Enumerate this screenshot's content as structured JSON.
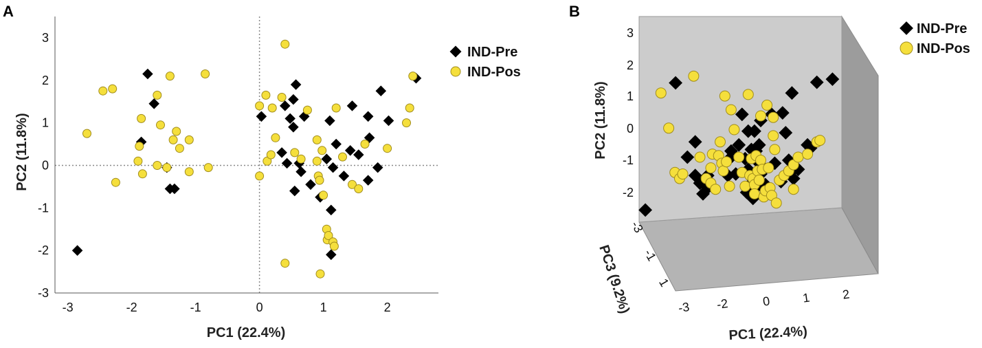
{
  "colors": {
    "pre": "#000000",
    "pos": "#F5DF3C",
    "pos_stroke": "#A08C1C",
    "back_wall": "#CCCCCC",
    "side_wall": "#9C9C9C",
    "floor": "#B4B4B4"
  },
  "panels": {
    "a": "A",
    "b": "B"
  },
  "legend": {
    "pre": "IND-Pre",
    "pos": "IND-Pos"
  },
  "chart_data": [
    {
      "type": "scatter",
      "panel": "A",
      "xlabel": "PC1 (22.4%)",
      "ylabel": "PC2 (11.8%)",
      "xlim": [
        -3.2,
        2.8
      ],
      "ylim": [
        -3,
        3.5
      ],
      "xticks": [
        "-3",
        "-2",
        "-1",
        "0",
        "1",
        "2"
      ],
      "yticks": [
        "-3",
        "-2",
        "-1",
        "0",
        "1",
        "2",
        "3"
      ],
      "reference_lines": {
        "x": 0,
        "y": 0,
        "style": "dotted"
      },
      "series": [
        {
          "name": "IND-Pre",
          "marker": "diamond",
          "points": [
            [
              -2.85,
              -2.0
            ],
            [
              -1.85,
              0.55
            ],
            [
              -1.75,
              2.15
            ],
            [
              -1.65,
              1.45
            ],
            [
              -1.45,
              -0.05
            ],
            [
              -1.4,
              -0.55
            ],
            [
              -1.33,
              -0.55
            ],
            [
              0.03,
              1.15
            ],
            [
              0.35,
              0.3
            ],
            [
              0.4,
              1.4
            ],
            [
              0.43,
              0.05
            ],
            [
              0.48,
              1.1
            ],
            [
              0.53,
              0.9
            ],
            [
              0.53,
              1.55
            ],
            [
              0.55,
              -0.6
            ],
            [
              0.57,
              1.9
            ],
            [
              0.62,
              0.05
            ],
            [
              0.65,
              -0.15
            ],
            [
              0.7,
              1.15
            ],
            [
              0.8,
              -0.45
            ],
            [
              0.95,
              -0.75
            ],
            [
              1.05,
              0.15
            ],
            [
              1.1,
              1.05
            ],
            [
              1.12,
              -1.05
            ],
            [
              1.12,
              -2.1
            ],
            [
              1.15,
              -0.05
            ],
            [
              1.2,
              0.5
            ],
            [
              1.32,
              -0.25
            ],
            [
              1.42,
              0.35
            ],
            [
              1.45,
              1.4
            ],
            [
              1.55,
              0.25
            ],
            [
              1.7,
              1.15
            ],
            [
              1.7,
              -0.35
            ],
            [
              1.72,
              0.65
            ],
            [
              1.85,
              -0.05
            ],
            [
              1.9,
              1.75
            ],
            [
              2.02,
              1.05
            ],
            [
              2.45,
              2.05
            ]
          ]
        },
        {
          "name": "IND-Pos",
          "marker": "circle",
          "points": [
            [
              -2.7,
              0.75
            ],
            [
              -2.45,
              1.75
            ],
            [
              -2.3,
              1.8
            ],
            [
              -2.25,
              -0.4
            ],
            [
              -1.9,
              0.1
            ],
            [
              -1.88,
              0.45
            ],
            [
              -1.85,
              1.1
            ],
            [
              -1.83,
              -0.2
            ],
            [
              -1.6,
              0.0
            ],
            [
              -1.6,
              1.65
            ],
            [
              -1.55,
              0.95
            ],
            [
              -1.45,
              -0.05
            ],
            [
              -1.4,
              2.1
            ],
            [
              -1.35,
              0.6
            ],
            [
              -1.3,
              0.8
            ],
            [
              -1.25,
              0.4
            ],
            [
              -1.1,
              0.6
            ],
            [
              -1.1,
              -0.15
            ],
            [
              -0.85,
              2.15
            ],
            [
              -0.8,
              -0.05
            ],
            [
              0.0,
              -0.25
            ],
            [
              0.0,
              1.4
            ],
            [
              0.1,
              1.65
            ],
            [
              0.12,
              0.1
            ],
            [
              0.18,
              0.25
            ],
            [
              0.2,
              1.35
            ],
            [
              0.25,
              0.65
            ],
            [
              0.35,
              1.6
            ],
            [
              0.4,
              2.85
            ],
            [
              0.4,
              -2.3
            ],
            [
              0.55,
              0.3
            ],
            [
              0.65,
              0.15
            ],
            [
              0.75,
              1.3
            ],
            [
              0.9,
              0.6
            ],
            [
              0.9,
              0.1
            ],
            [
              0.92,
              -0.25
            ],
            [
              0.94,
              -0.35
            ],
            [
              0.95,
              -2.55
            ],
            [
              0.98,
              0.35
            ],
            [
              1.0,
              -0.7
            ],
            [
              1.05,
              -1.5
            ],
            [
              1.06,
              -1.75
            ],
            [
              1.08,
              -1.65
            ],
            [
              1.15,
              -1.8
            ],
            [
              1.17,
              -1.9
            ],
            [
              1.2,
              1.35
            ],
            [
              1.3,
              0.2
            ],
            [
              1.45,
              -0.45
            ],
            [
              1.55,
              -0.55
            ],
            [
              1.65,
              0.5
            ],
            [
              2.0,
              0.4
            ],
            [
              2.3,
              1.0
            ],
            [
              2.35,
              1.35
            ],
            [
              2.4,
              2.1
            ]
          ]
        }
      ]
    },
    {
      "type": "scatter",
      "panel": "B",
      "projection": "3d",
      "xlabel": "PC1 (22.4%)",
      "ylabel": "PC2 (11.8%)",
      "zlabel": "PC3 (9.2%)",
      "xticks": [
        "-3",
        "-2",
        "0",
        "1",
        "2"
      ],
      "yticks": [
        "-2",
        "-1",
        "0",
        "1",
        "2",
        "3"
      ],
      "zticks": [
        "-3",
        "-1",
        "1"
      ],
      "xlim": [
        -3.5,
        3.0
      ],
      "ylim": [
        -3.0,
        3.5
      ],
      "series": [
        {
          "name": "IND-Pre",
          "marker": "diamond",
          "points": [
            [
              -3.3,
              -2.83
            ],
            [
              -2.33,
              1.33
            ],
            [
              -1.95,
              -1.1
            ],
            [
              -1.7,
              -0.6
            ],
            [
              -1.7,
              -1.7
            ],
            [
              -1.55,
              -1.95
            ],
            [
              -1.45,
              -2.3
            ],
            [
              -1.3,
              -2.1
            ],
            [
              -1.3,
              -1.7
            ],
            [
              -0.65,
              -1.7
            ],
            [
              -0.6,
              -1.15
            ],
            [
              -0.55,
              -0.9
            ],
            [
              -0.4,
              -1.65
            ],
            [
              -0.3,
              -0.7
            ],
            [
              -0.2,
              0.3
            ],
            [
              -0.1,
              -1.15
            ],
            [
              -0.05,
              -2.25
            ],
            [
              0.0,
              -0.25
            ],
            [
              0.0,
              -1.5
            ],
            [
              0.05,
              -2.0
            ],
            [
              0.1,
              -0.85
            ],
            [
              0.15,
              -2.45
            ],
            [
              0.2,
              -0.25
            ],
            [
              0.25,
              -2.1
            ],
            [
              0.25,
              -0.9
            ],
            [
              0.35,
              -0.7
            ],
            [
              0.35,
              -1.3
            ],
            [
              0.4,
              -1.65
            ],
            [
              0.4,
              0.1
            ],
            [
              0.55,
              -2.0
            ],
            [
              0.75,
              0.3
            ],
            [
              0.85,
              -1.3
            ],
            [
              1.05,
              -1.9
            ],
            [
              1.1,
              0.35
            ],
            [
              1.2,
              -0.3
            ],
            [
              1.3,
              -1.2
            ],
            [
              1.35,
              -1.6
            ],
            [
              1.45,
              -1.8
            ],
            [
              1.4,
              1.0
            ],
            [
              1.6,
              -1.5
            ],
            [
              1.9,
              -0.7
            ],
            [
              2.0,
              -0.8
            ],
            [
              2.2,
              1.35
            ],
            [
              2.7,
              1.45
            ]
          ]
        },
        {
          "name": "IND-Pos",
          "marker": "circle",
          "points": [
            [
              -2.8,
              1.0
            ],
            [
              -2.55,
              -0.15
            ],
            [
              -2.35,
              -1.6
            ],
            [
              -2.2,
              -1.8
            ],
            [
              -2.1,
              -1.65
            ],
            [
              -1.75,
              1.55
            ],
            [
              -1.55,
              -1.1
            ],
            [
              -1.35,
              -1.8
            ],
            [
              -1.2,
              -1.45
            ],
            [
              -1.2,
              -1.95
            ],
            [
              -1.15,
              -1.0
            ],
            [
              -1.05,
              -2.15
            ],
            [
              -0.95,
              -1.05
            ],
            [
              -0.9,
              -0.6
            ],
            [
              -0.85,
              -1.3
            ],
            [
              -0.8,
              -1.55
            ],
            [
              -0.75,
              0.9
            ],
            [
              -0.7,
              -1.25
            ],
            [
              -0.6,
              -2.05
            ],
            [
              -0.55,
              0.45
            ],
            [
              -0.45,
              -0.2
            ],
            [
              -0.3,
              -1.1
            ],
            [
              -0.2,
              -1.6
            ],
            [
              -0.1,
              -2.05
            ],
            [
              0.0,
              0.95
            ],
            [
              0.05,
              -1.7
            ],
            [
              0.1,
              -1.15
            ],
            [
              0.15,
              -1.8
            ],
            [
              0.2,
              -2.0
            ],
            [
              0.2,
              -2.3
            ],
            [
              0.25,
              -1.05
            ],
            [
              0.3,
              -1.55
            ],
            [
              0.35,
              -1.85
            ],
            [
              0.4,
              -1.2
            ],
            [
              0.4,
              0.25
            ],
            [
              0.45,
              -1.5
            ],
            [
              0.5,
              -2.4
            ],
            [
              0.55,
              -2.2
            ],
            [
              0.6,
              0.6
            ],
            [
              0.65,
              -1.45
            ],
            [
              0.7,
              -2.1
            ],
            [
              0.75,
              -2.35
            ],
            [
              0.8,
              0.2
            ],
            [
              0.8,
              -0.4
            ],
            [
              0.85,
              -0.85
            ],
            [
              0.9,
              -2.6
            ],
            [
              1.0,
              -1.85
            ],
            [
              1.15,
              -1.7
            ],
            [
              1.3,
              -1.55
            ],
            [
              1.45,
              -1.35
            ],
            [
              1.45,
              -2.15
            ],
            [
              1.6,
              -1.1
            ],
            [
              1.9,
              -1.0
            ],
            [
              2.2,
              -0.6
            ],
            [
              2.3,
              -0.55
            ]
          ]
        }
      ]
    }
  ]
}
